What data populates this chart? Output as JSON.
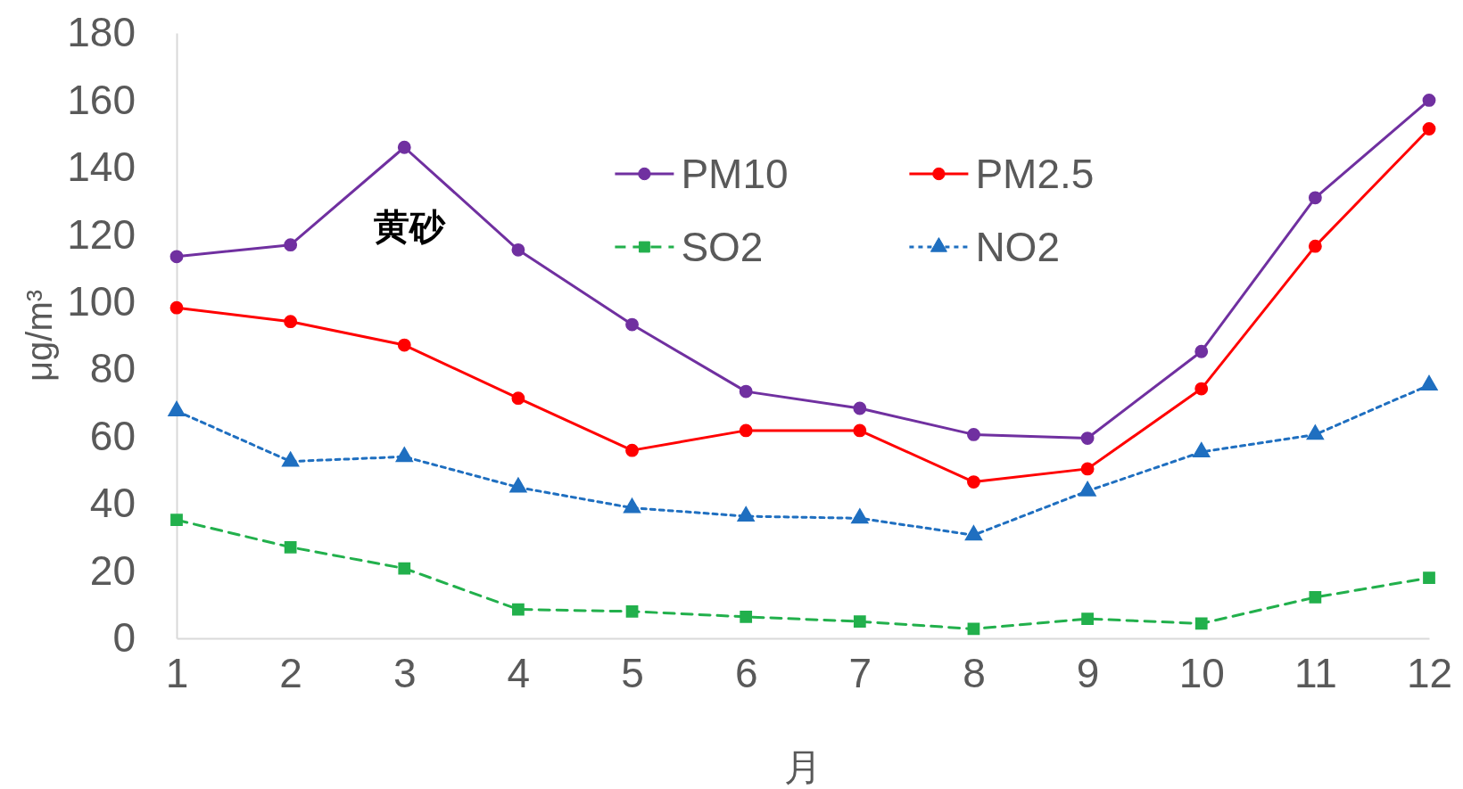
{
  "chart_data": {
    "type": "line",
    "xlabel": "月",
    "ylabel": "μg/m³",
    "x": [
      1,
      2,
      3,
      4,
      5,
      6,
      7,
      8,
      9,
      10,
      11,
      12
    ],
    "xlim": [
      1,
      12
    ],
    "xticks": [
      1,
      2,
      3,
      4,
      5,
      6,
      7,
      8,
      9,
      10,
      11,
      12
    ],
    "ylim": [
      0,
      180
    ],
    "yticks": [
      0,
      20,
      40,
      60,
      80,
      100,
      120,
      140,
      160,
      180
    ],
    "grid": false,
    "legend": "top",
    "annotations": [
      "黄砂"
    ],
    "series": [
      {
        "name": "PM10",
        "color": "#7030a0",
        "marker": "circle",
        "line_style": "solid",
        "values": [
          113.5,
          117,
          146,
          115.5,
          93.3,
          73.4,
          68.4,
          60.6,
          59.5,
          85.3,
          131,
          160
        ]
      },
      {
        "name": "PM2.5",
        "color": "#ff0000",
        "marker": "circle",
        "line_style": "solid",
        "values": [
          98.3,
          94.2,
          87.2,
          71.4,
          55.9,
          61.8,
          61.8,
          46.5,
          50.4,
          74.2,
          116.6,
          151.5
        ]
      },
      {
        "name": "SO2",
        "color": "#22b04c",
        "marker": "square",
        "line_style": "dashed",
        "values": [
          35.2,
          27.1,
          20.8,
          8.6,
          8,
          6.4,
          5,
          2.8,
          5.8,
          4.4,
          12.2,
          18
        ]
      },
      {
        "name": "NO2",
        "color": "#1f6fc0",
        "marker": "triangle",
        "line_style": "dotted",
        "values": [
          67.6,
          52.6,
          54,
          44.9,
          38.8,
          36.3,
          35.7,
          30.7,
          43.8,
          55.4,
          60.6,
          75.3
        ]
      }
    ]
  }
}
